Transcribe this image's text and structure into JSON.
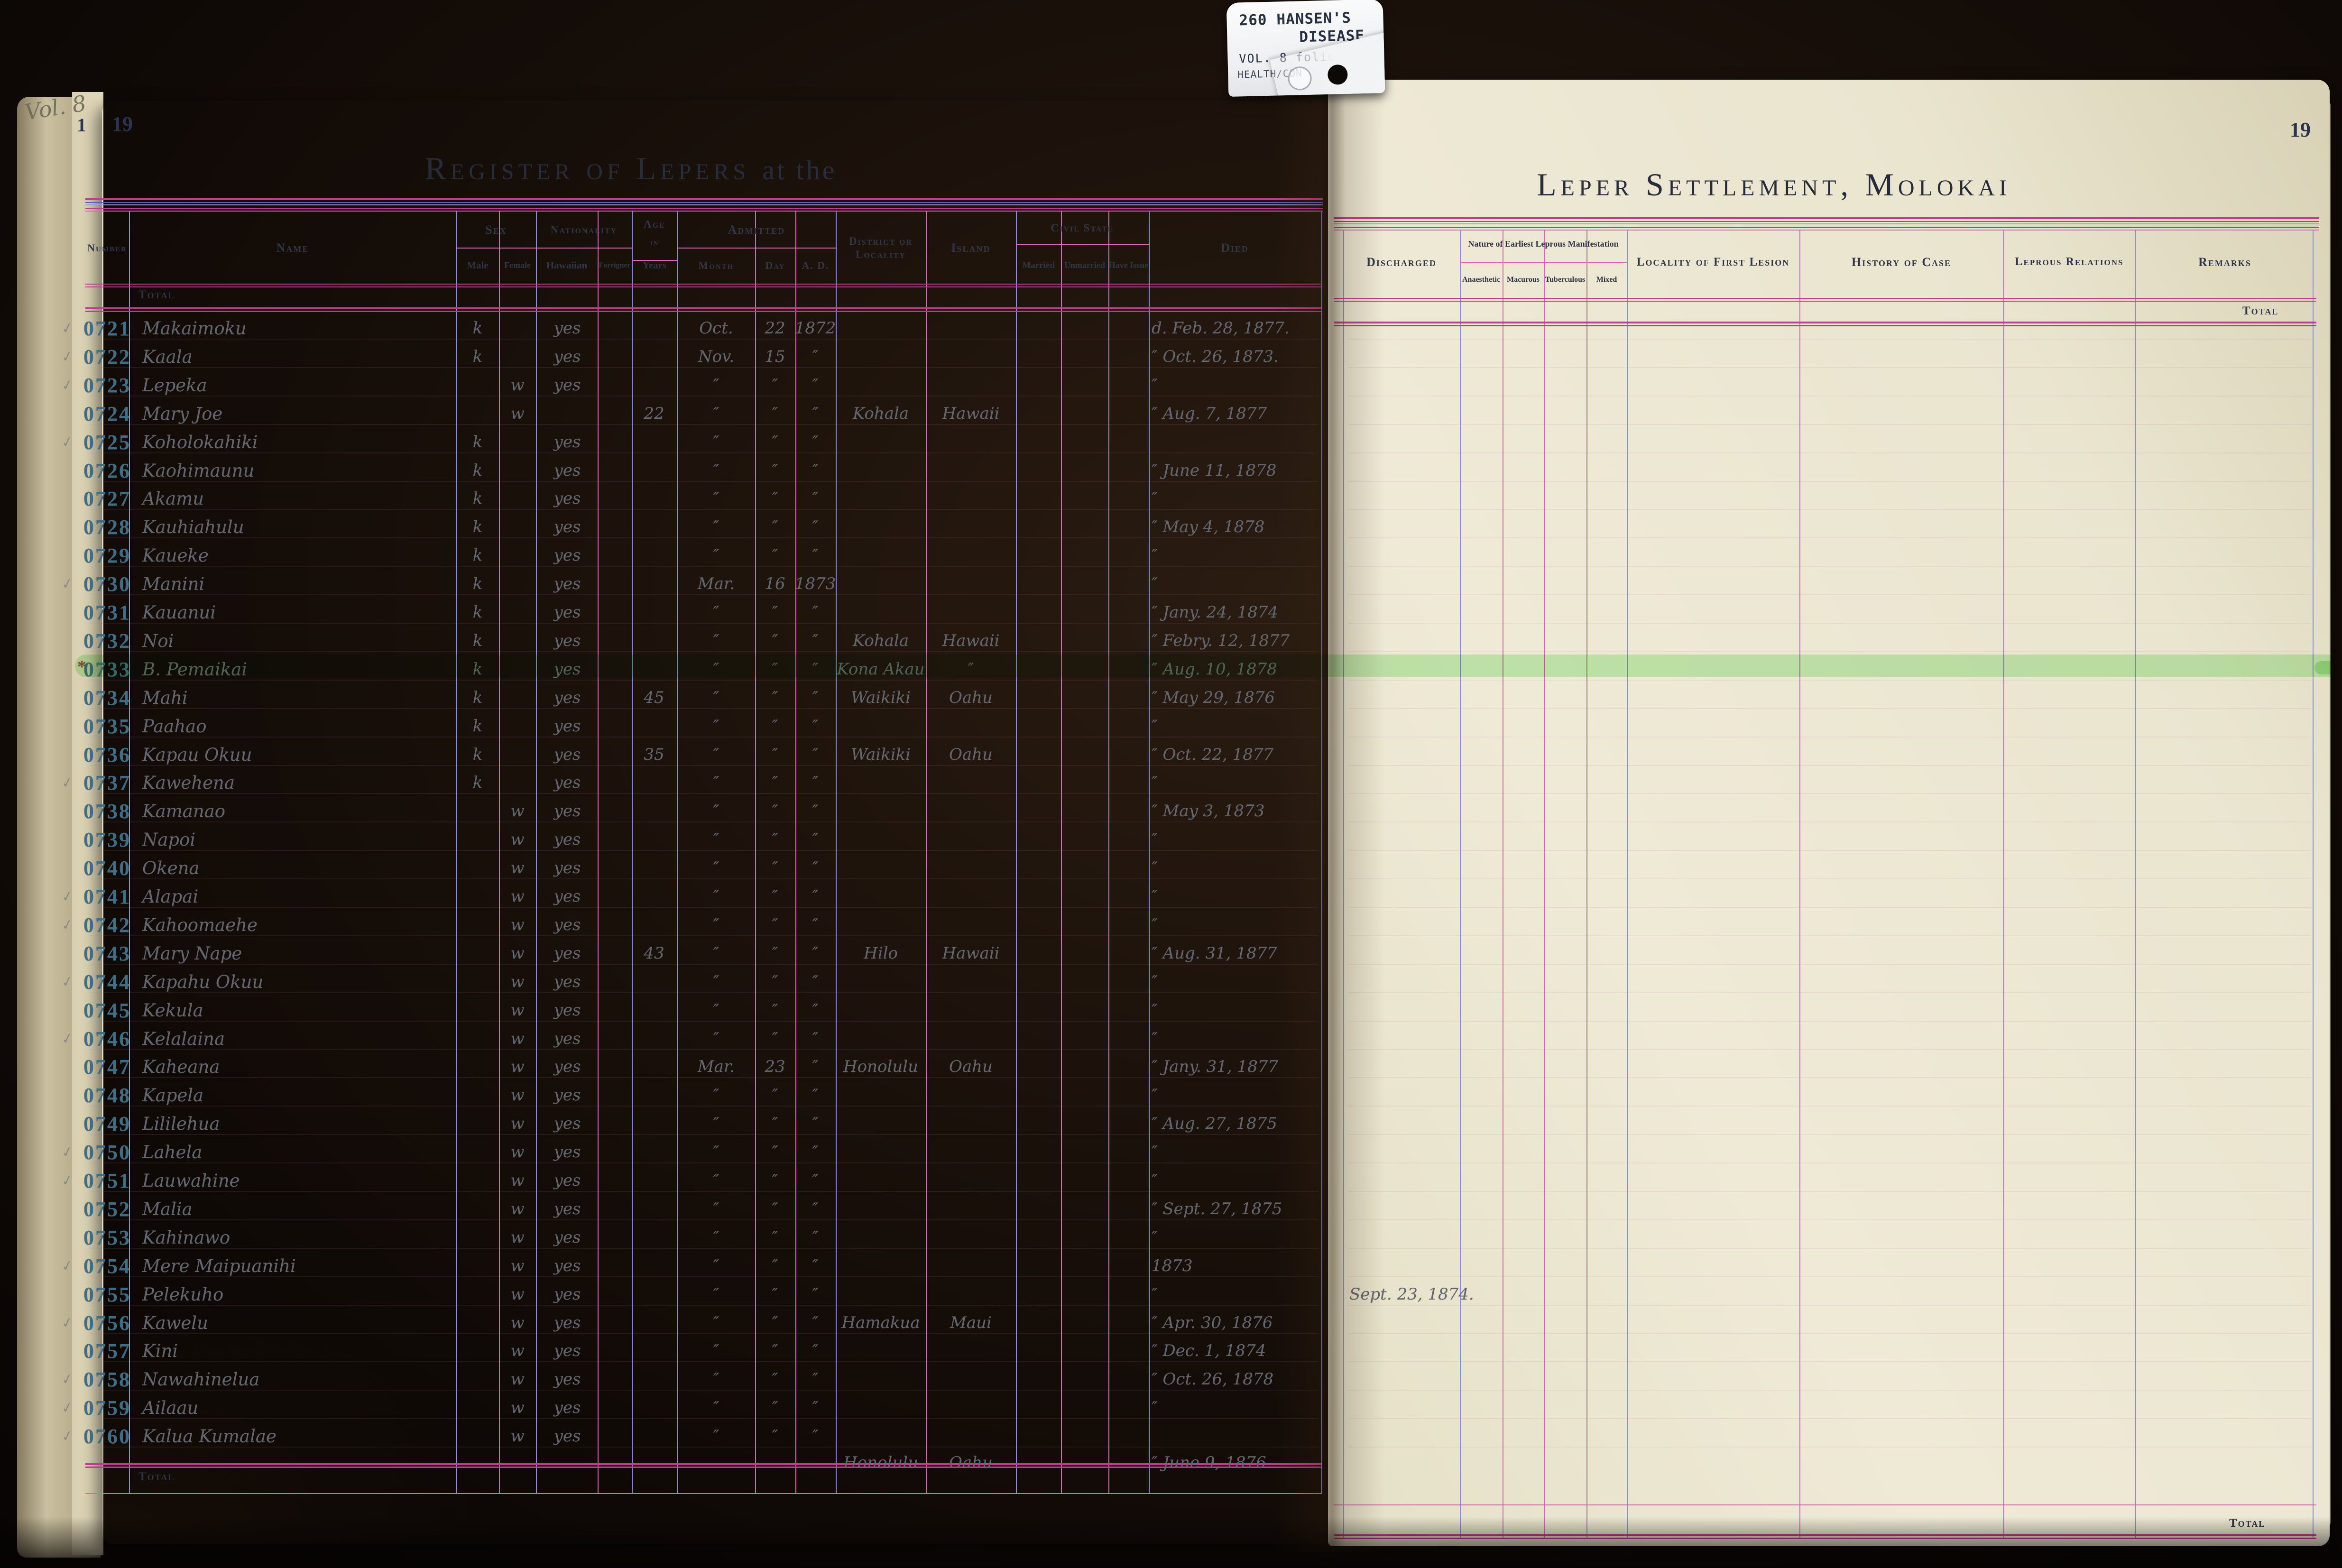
{
  "page": {
    "left_page_number": "19",
    "right_page_number": "19",
    "under_page_number": "1",
    "volume_note": "Vol. 8",
    "title_left_main": "Register of Lepers",
    "title_left_suffix": "at the",
    "title_right": "Leper Settlement, Molokai"
  },
  "tab": {
    "code": "260",
    "line1": "HANSEN'S",
    "line2": "DISEASE",
    "line3": "VOL. 8 folio",
    "line4": "HEALTH/CON"
  },
  "header": {
    "number": "Number",
    "name": "Name",
    "sex": "Sex",
    "male": "Male",
    "female": "Female",
    "nationality": "Nationality",
    "hawaiian": "Hawaiian",
    "foreigner": "Foreigner",
    "age_top": "Age",
    "age_mid": "in",
    "age_sub": "Years",
    "admitted": "Admitted",
    "month": "Month",
    "day": "Day",
    "ad": "A. D.",
    "district": "District or Locality",
    "island": "Island",
    "civil_state": "Civil State",
    "married": "Married",
    "unmarried": "Unmarried",
    "have_issue": "Have Issue",
    "died": "Died",
    "discharged": "Discharged",
    "nature": "Nature of Earliest Leprous Manifestation",
    "anaesthetic": "Anaesthetic",
    "macurous": "Macurous",
    "tuberculous": "Tuberculous",
    "mixed": "Mixed",
    "locality_first_lesion": "Locality of First Lesion",
    "history": "History of Case",
    "leprous_relations": "Leprous Relations",
    "remarks": "Remarks"
  },
  "totals": {
    "left_top": "Total",
    "left_bottom": "Total",
    "right_top": "Total",
    "right_bottom": "Total"
  },
  "highlight": {
    "register_number": "0733",
    "color": "#84e476"
  },
  "colors": {
    "rule_pink": "#c23b8e",
    "rule_pink_light": "#d36bb2",
    "rule_blue": "#5a62b8",
    "line_purple": "#8a8ed2",
    "line_pink": "#d06ab0",
    "stamp_blue": "#3f6d85",
    "pencil": "#63666e",
    "paper": "#e9e4cc"
  },
  "rows": [
    {
      "n": "0721",
      "name": "Makaimoku",
      "sex": "k",
      "haw": "yes",
      "mo": "Oct.",
      "d": "22",
      "yr": "1872",
      "died": "d. Feb. 28, 1877.",
      "tick": true
    },
    {
      "n": "0722",
      "name": "Kaala",
      "sex": "k",
      "haw": "yes",
      "mo": "Nov.",
      "d": "15",
      "yr": "″",
      "died": "″ Oct. 26, 1873.",
      "tick": true
    },
    {
      "n": "0723",
      "name": "Lepeka",
      "sex": "w",
      "haw": "yes",
      "mo": "″",
      "d": "″",
      "yr": "″",
      "died": "″",
      "tick": true
    },
    {
      "n": "0724",
      "name": "Mary Joe",
      "sex": "w",
      "haw": "",
      "age": "22",
      "mo": "″",
      "d": "″",
      "yr": "″",
      "loc": "Kohala",
      "isl": "Hawaii",
      "died": "″ Aug. 7, 1877"
    },
    {
      "n": "0725",
      "name": "Koholokahiki",
      "sex": "k",
      "haw": "yes",
      "mo": "″",
      "d": "″",
      "yr": "″",
      "tick": true
    },
    {
      "n": "0726",
      "name": "Kaohimaunu",
      "sex": "k",
      "haw": "yes",
      "mo": "″",
      "d": "″",
      "yr": "″",
      "died": "″ June 11, 1878"
    },
    {
      "n": "0727",
      "name": "Akamu",
      "sex": "k",
      "haw": "yes",
      "mo": "″",
      "d": "″",
      "yr": "″",
      "died": "″"
    },
    {
      "n": "0728",
      "name": "Kauhiahulu",
      "sex": "k",
      "haw": "yes",
      "mo": "″",
      "d": "″",
      "yr": "″",
      "died": "″ May 4, 1878"
    },
    {
      "n": "0729",
      "name": "Kaueke",
      "sex": "k",
      "haw": "yes",
      "mo": "″",
      "d": "″",
      "yr": "″",
      "died": "″"
    },
    {
      "n": "0730",
      "name": "Manini",
      "sex": "k",
      "haw": "yes",
      "mo": "Mar.",
      "d": "16",
      "yr": "1873",
      "died": "″",
      "tick": true
    },
    {
      "n": "0731",
      "name": "Kauanui",
      "sex": "k",
      "haw": "yes",
      "mo": "″",
      "d": "″",
      "yr": "″",
      "died": "″ Jany. 24, 1874"
    },
    {
      "n": "0732",
      "name": "Noi",
      "sex": "k",
      "haw": "yes",
      "mo": "″",
      "d": "″",
      "yr": "″",
      "loc": "Kohala",
      "isl": "Hawaii",
      "died": "″ Febry. 12, 1877"
    },
    {
      "n": "0733",
      "name": "B. Pemaikai",
      "sex": "k",
      "haw": "yes",
      "mo": "″",
      "d": "″",
      "yr": "″",
      "loc": "Kona Akau",
      "isl": "″",
      "died": "″ Aug. 10, 1878",
      "hl": true
    },
    {
      "n": "0734",
      "name": "Mahi",
      "sex": "k",
      "haw": "yes",
      "age": "45",
      "mo": "″",
      "d": "″",
      "yr": "″",
      "loc": "Waikiki",
      "isl": "Oahu",
      "died": "″ May 29, 1876"
    },
    {
      "n": "0735",
      "name": "Paahao",
      "sex": "k",
      "haw": "yes",
      "mo": "″",
      "d": "″",
      "yr": "″",
      "died": "″"
    },
    {
      "n": "0736",
      "name": "Kapau Okuu",
      "sex": "k",
      "haw": "yes",
      "age": "35",
      "mo": "″",
      "d": "″",
      "yr": "″",
      "loc": "Waikiki",
      "isl": "Oahu",
      "died": "″ Oct. 22, 1877"
    },
    {
      "n": "0737",
      "name": "Kawehena",
      "sex": "k",
      "haw": "yes",
      "mo": "″",
      "d": "″",
      "yr": "″",
      "died": "″",
      "tick": true
    },
    {
      "n": "0738",
      "name": "Kamanao",
      "sex": "w",
      "haw": "yes",
      "mo": "″",
      "d": "″",
      "yr": "″",
      "died": "″ May 3, 1873"
    },
    {
      "n": "0739",
      "name": "Napoi",
      "sex": "w",
      "haw": "yes",
      "mo": "″",
      "d": "″",
      "yr": "″",
      "died": "″"
    },
    {
      "n": "0740",
      "name": "Okena",
      "sex": "w",
      "haw": "yes",
      "mo": "″",
      "d": "″",
      "yr": "″",
      "died": "″"
    },
    {
      "n": "0741",
      "name": "Alapai",
      "sex": "w",
      "haw": "yes",
      "mo": "″",
      "d": "″",
      "yr": "″",
      "died": "″",
      "tick": true
    },
    {
      "n": "0742",
      "name": "Kahoomaehe",
      "sex": "w",
      "haw": "yes",
      "mo": "″",
      "d": "″",
      "yr": "″",
      "died": "″",
      "tick": true
    },
    {
      "n": "0743",
      "name": "Mary Nape",
      "sex": "w",
      "haw": "yes",
      "age": "43",
      "mo": "″",
      "d": "″",
      "yr": "″",
      "loc": "Hilo",
      "isl": "Hawaii",
      "died": "″ Aug. 31, 1877"
    },
    {
      "n": "0744",
      "name": "Kapahu Okuu",
      "sex": "w",
      "haw": "yes",
      "mo": "″",
      "d": "″",
      "yr": "″",
      "died": "″",
      "tick": true
    },
    {
      "n": "0745",
      "name": "Kekula",
      "sex": "w",
      "haw": "yes",
      "mo": "″",
      "d": "″",
      "yr": "″",
      "died": "″"
    },
    {
      "n": "0746",
      "name": "Kelalaina",
      "sex": "w",
      "haw": "yes",
      "mo": "″",
      "d": "″",
      "yr": "″",
      "died": "″",
      "tick": true
    },
    {
      "n": "0747",
      "name": "Kaheana",
      "sex": "w",
      "haw": "yes",
      "mo": "Mar.",
      "d": "23",
      "yr": "″",
      "loc": "Honolulu",
      "isl": "Oahu",
      "died": "″ Jany. 31, 1877"
    },
    {
      "n": "0748",
      "name": "Kapela",
      "sex": "w",
      "haw": "yes",
      "mo": "″",
      "d": "″",
      "yr": "″",
      "died": "″"
    },
    {
      "n": "0749",
      "name": "Lililehua",
      "sex": "w",
      "haw": "yes",
      "mo": "″",
      "d": "″",
      "yr": "″",
      "died": "″ Aug. 27, 1875"
    },
    {
      "n": "0750",
      "name": "Lahela",
      "sex": "w",
      "haw": "yes",
      "mo": "″",
      "d": "″",
      "yr": "″",
      "died": "″",
      "tick": true
    },
    {
      "n": "0751",
      "name": "Lauwahine",
      "sex": "w",
      "haw": "yes",
      "mo": "″",
      "d": "″",
      "yr": "″",
      "died": "″",
      "tick": true
    },
    {
      "n": "0752",
      "name": "Malia",
      "sex": "w",
      "haw": "yes",
      "mo": "″",
      "d": "″",
      "yr": "″",
      "died": "″ Sept. 27, 1875"
    },
    {
      "n": "0753",
      "name": "Kahinawo",
      "sex": "w",
      "haw": "yes",
      "mo": "″",
      "d": "″",
      "yr": "″",
      "died": "″"
    },
    {
      "n": "0754",
      "name": "Mere Maipuanihi",
      "sex": "w",
      "haw": "yes",
      "mo": "″",
      "d": "″",
      "yr": "″",
      "died": "1873",
      "tick": true
    },
    {
      "n": "0755",
      "name": "Pelekuho",
      "sex": "w",
      "haw": "yes",
      "mo": "″",
      "d": "″",
      "yr": "″",
      "died": "″",
      "disch": "Sept. 23, 1874."
    },
    {
      "n": "0756",
      "name": "Kawelu",
      "sex": "w",
      "haw": "yes",
      "mo": "″",
      "d": "″",
      "yr": "″",
      "loc": "Hamakua",
      "isl": "Maui",
      "died": "″ Apr. 30, 1876",
      "tick": true
    },
    {
      "n": "0757",
      "name": "Kini",
      "sex": "w",
      "haw": "yes",
      "mo": "″",
      "d": "″",
      "yr": "″",
      "died": "″ Dec. 1, 1874"
    },
    {
      "n": "0758",
      "name": "Nawahinelua",
      "sex": "w",
      "haw": "yes",
      "mo": "″",
      "d": "″",
      "yr": "″",
      "died": "″ Oct. 26, 1878",
      "tick": true
    },
    {
      "n": "0759",
      "name": "Ailaau",
      "sex": "w",
      "haw": "yes",
      "mo": "″",
      "d": "″",
      "yr": "″",
      "died": "″",
      "tick": true
    },
    {
      "n": "0760",
      "name": "Kalua Kumalae",
      "sex": "w",
      "haw": "yes",
      "mo": "″",
      "d": "″",
      "yr": "″",
      "loc": "Honolulu",
      "isl": "Oahu",
      "died": "″ June 9, 1876",
      "low": true,
      "tick": true
    }
  ]
}
